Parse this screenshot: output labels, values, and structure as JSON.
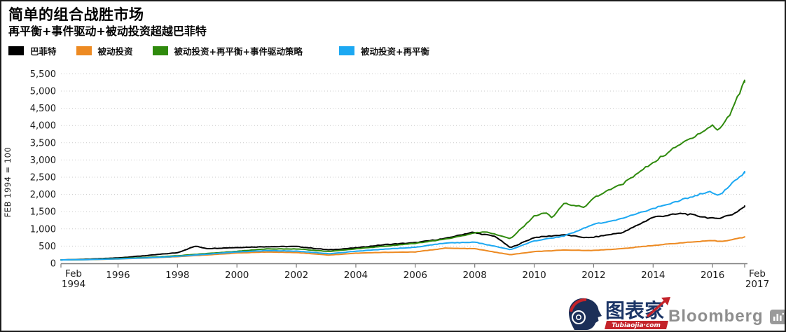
{
  "header": {
    "title": "简单的组合战胜市场",
    "subtitle": "再平衡+事件驱动+被动投资超越巴菲特"
  },
  "legend": [
    {
      "label": "巴菲特",
      "color": "#000000"
    },
    {
      "label": "被动投资",
      "color": "#ED8A22"
    },
    {
      "label": "被动投资+再平衡+事件驱动策略",
      "color": "#2F8A0D"
    },
    {
      "label": "被动投资+再平衡",
      "color": "#1CA8F2"
    }
  ],
  "chart_data": {
    "type": "line",
    "title": "简单的组合战胜市场",
    "subtitle": "再平衡+事件驱动+被动投资超越巴菲特",
    "xlabel": "",
    "ylabel": "FEB 1994 = 100",
    "ylim": [
      0,
      5500
    ],
    "xlim": [
      1994.08,
      2017.08
    ],
    "grid": "horizontal-dotted",
    "legend_position": "top-left",
    "y_ticks": [
      0,
      500,
      1000,
      1500,
      2000,
      2500,
      3000,
      3500,
      4000,
      4500,
      5000,
      5500
    ],
    "y_tick_labels": [
      "0",
      "500",
      "1,000",
      "1,500",
      "2,000",
      "2,500",
      "3,000",
      "3,500",
      "4,000",
      "4,500",
      "5,000",
      "5,500"
    ],
    "x_ticks": [
      {
        "t": 1994.08,
        "label": "Feb|1994"
      },
      {
        "t": 1996,
        "label": "1996"
      },
      {
        "t": 1998,
        "label": "1998"
      },
      {
        "t": 2000,
        "label": "2000"
      },
      {
        "t": 2002,
        "label": "2002"
      },
      {
        "t": 2004,
        "label": "2004"
      },
      {
        "t": 2006,
        "label": "2006"
      },
      {
        "t": 2008,
        "label": "2008"
      },
      {
        "t": 2010,
        "label": "2010"
      },
      {
        "t": 2012,
        "label": "2012"
      },
      {
        "t": 2014,
        "label": "2014"
      },
      {
        "t": 2016,
        "label": "2016"
      },
      {
        "t": 2017.08,
        "label": "Feb|2017"
      }
    ],
    "series": [
      {
        "name": "巴菲特",
        "color": "#000000",
        "points": [
          [
            1994.08,
            100
          ],
          [
            1995,
            122
          ],
          [
            1996,
            158
          ],
          [
            1997,
            230
          ],
          [
            1998,
            310
          ],
          [
            1998.6,
            500
          ],
          [
            1999,
            430
          ],
          [
            2000,
            460
          ],
          [
            2001,
            485
          ],
          [
            2002,
            490
          ],
          [
            2003.1,
            390
          ],
          [
            2004,
            450
          ],
          [
            2005,
            545
          ],
          [
            2006,
            600
          ],
          [
            2007,
            720
          ],
          [
            2007.9,
            900
          ],
          [
            2008.7,
            780
          ],
          [
            2009.2,
            450
          ],
          [
            2010,
            750
          ],
          [
            2011,
            830
          ],
          [
            2011.8,
            740
          ],
          [
            2012,
            760
          ],
          [
            2013,
            900
          ],
          [
            2014,
            1340
          ],
          [
            2015,
            1450
          ],
          [
            2016.1,
            1290
          ],
          [
            2016.7,
            1430
          ],
          [
            2017.08,
            1650
          ]
        ]
      },
      {
        "name": "被动投资",
        "color": "#ED8A22",
        "points": [
          [
            1994.08,
            100
          ],
          [
            1995,
            108
          ],
          [
            1996,
            128
          ],
          [
            1997,
            155
          ],
          [
            1998,
            195
          ],
          [
            1999,
            245
          ],
          [
            2000,
            300
          ],
          [
            2001,
            330
          ],
          [
            2002,
            315
          ],
          [
            2003.1,
            240
          ],
          [
            2004,
            295
          ],
          [
            2005,
            320
          ],
          [
            2006,
            330
          ],
          [
            2007,
            440
          ],
          [
            2008,
            425
          ],
          [
            2009.2,
            250
          ],
          [
            2010,
            340
          ],
          [
            2011,
            385
          ],
          [
            2012,
            375
          ],
          [
            2013,
            430
          ],
          [
            2014,
            520
          ],
          [
            2015,
            600
          ],
          [
            2016,
            660
          ],
          [
            2016.3,
            635
          ],
          [
            2017.08,
            760
          ]
        ]
      },
      {
        "name": "被动投资+再平衡+事件驱动策略",
        "color": "#2F8A0D",
        "points": [
          [
            1994.08,
            100
          ],
          [
            1995,
            112
          ],
          [
            1996,
            140
          ],
          [
            1997,
            175
          ],
          [
            1998,
            220
          ],
          [
            1999,
            285
          ],
          [
            2000,
            350
          ],
          [
            2001,
            420
          ],
          [
            2002,
            420
          ],
          [
            2003.1,
            345
          ],
          [
            2004,
            420
          ],
          [
            2005,
            500
          ],
          [
            2006,
            580
          ],
          [
            2007,
            700
          ],
          [
            2008,
            880
          ],
          [
            2008.4,
            920
          ],
          [
            2009.2,
            710
          ],
          [
            2010,
            1370
          ],
          [
            2010.4,
            1480
          ],
          [
            2010.6,
            1300
          ],
          [
            2011,
            1750
          ],
          [
            2011.7,
            1620
          ],
          [
            2012,
            1910
          ],
          [
            2013,
            2320
          ],
          [
            2014,
            2930
          ],
          [
            2015,
            3500
          ],
          [
            2016,
            4000
          ],
          [
            2016.2,
            3850
          ],
          [
            2016.6,
            4350
          ],
          [
            2017.08,
            5300
          ]
        ]
      },
      {
        "name": "被动投资+再平衡",
        "color": "#1CA8F2",
        "points": [
          [
            1994.08,
            100
          ],
          [
            1995,
            110
          ],
          [
            1996,
            130
          ],
          [
            1997,
            162
          ],
          [
            1998,
            205
          ],
          [
            1999,
            265
          ],
          [
            2000,
            330
          ],
          [
            2001,
            370
          ],
          [
            2002,
            355
          ],
          [
            2003.1,
            280
          ],
          [
            2004,
            350
          ],
          [
            2005,
            415
          ],
          [
            2006,
            470
          ],
          [
            2007,
            590
          ],
          [
            2008,
            615
          ],
          [
            2009.2,
            400
          ],
          [
            2010,
            650
          ],
          [
            2011,
            790
          ],
          [
            2012,
            1130
          ],
          [
            2013,
            1310
          ],
          [
            2014,
            1590
          ],
          [
            2015,
            1850
          ],
          [
            2015.9,
            2100
          ],
          [
            2016.2,
            1950
          ],
          [
            2017.08,
            2650
          ]
        ]
      }
    ]
  },
  "footer": {
    "tubiaojia_text": "图表家",
    "tubiaojia_domain": "Tubiaojia·com",
    "bloomberg": "Bloomberg"
  }
}
